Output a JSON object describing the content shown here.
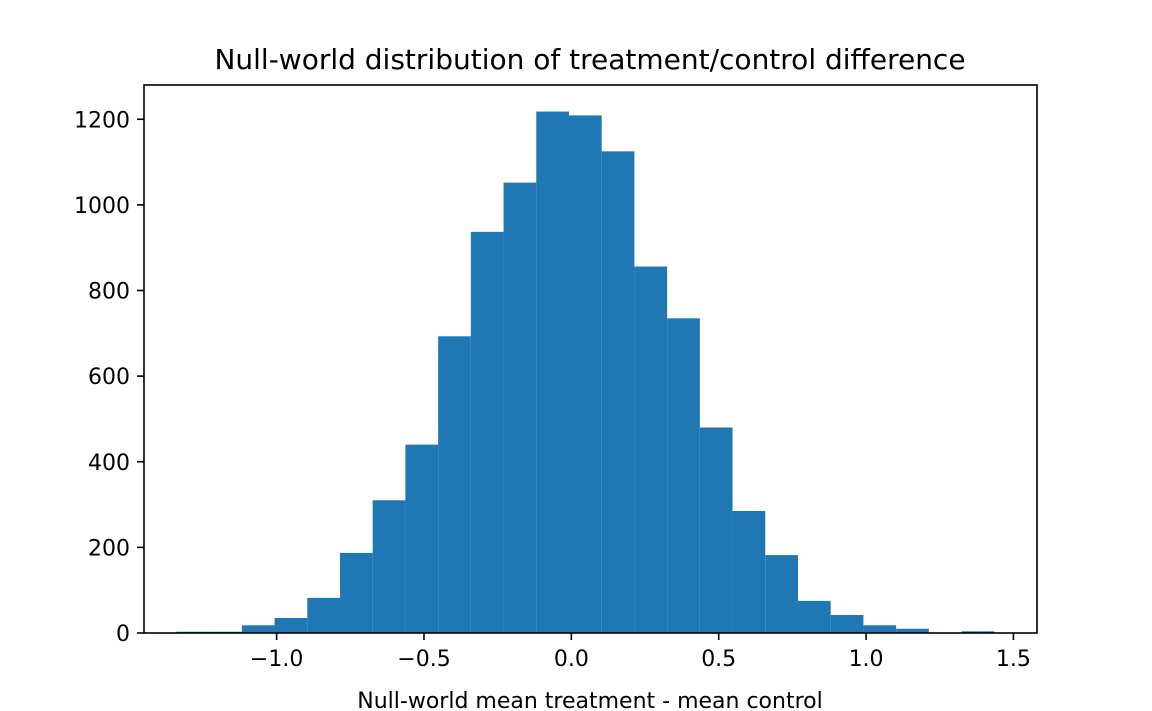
{
  "chart_data": {
    "type": "bar",
    "title": "Null-world distribution of treatment/control difference",
    "xlabel": "Null-world mean treatment - mean control",
    "ylabel": "",
    "xlim": [
      -1.45,
      1.58
    ],
    "ylim": [
      0,
      1280
    ],
    "xticks": [
      -1.0,
      -0.5,
      0.0,
      0.5,
      1.0,
      1.5
    ],
    "xtick_labels": [
      "−1.0",
      "−0.5",
      "0.0",
      "0.5",
      "1.0",
      "1.5"
    ],
    "yticks": [
      0,
      200,
      400,
      600,
      800,
      1000,
      1200
    ],
    "ytick_labels": [
      "0",
      "200",
      "400",
      "600",
      "800",
      "1000",
      "1200"
    ],
    "bin_edges": [
      -1.34,
      -1.229,
      -1.118,
      -1.007,
      -0.896,
      -0.785,
      -0.674,
      -0.563,
      -0.452,
      -0.341,
      -0.23,
      -0.119,
      -0.008,
      0.103,
      0.214,
      0.325,
      0.436,
      0.547,
      0.658,
      0.769,
      0.88,
      0.991,
      1.102,
      1.213,
      1.324,
      1.435
    ],
    "values": [
      3,
      3,
      18,
      35,
      82,
      187,
      310,
      440,
      693,
      937,
      1052,
      1218,
      1209,
      1125,
      856,
      735,
      480,
      285,
      182,
      75,
      42,
      18,
      10,
      0,
      4
    ],
    "bar_color": "#1f77b4",
    "grid": false
  }
}
